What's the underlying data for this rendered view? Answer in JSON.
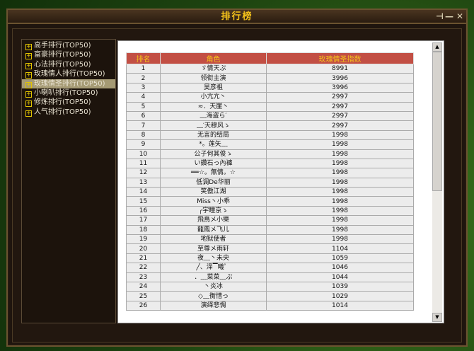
{
  "window": {
    "title": "排行榜",
    "pin_icon": "pin-icon",
    "minimize_icon": "minimize-icon",
    "close_icon": "close-icon"
  },
  "tree": {
    "selected": 4,
    "items": [
      {
        "label": "高手排行(TOP50)"
      },
      {
        "label": "富豪排行(TOP50)"
      },
      {
        "label": "心法排行(TOP50)"
      },
      {
        "label": "玫瑰情人排行(TOP50)"
      },
      {
        "label": "玫瑰情圣排行(TOP50)"
      },
      {
        "label": "小喇叭排行(TOP50)"
      },
      {
        "label": "修炼排行(TOP50)"
      },
      {
        "label": "人气排行(TOP50)"
      }
    ]
  },
  "table": {
    "headers": [
      "排名",
      "角色",
      "玫瑰情圣指数"
    ],
    "rows": [
      [
        "1",
        "ゞ情天ぷ",
        "8991"
      ],
      [
        "2",
        "领衔主演",
        "3996"
      ],
      [
        "3",
        "吴彦祖",
        "3996"
      ],
      [
        "4",
        "小亢亢丶",
        "2997"
      ],
      [
        "5",
        "≈．天崖丶",
        "2997"
      ],
      [
        "6",
        "﹏海盗ら′",
        "2997"
      ],
      [
        "7",
        "﹏′天穆风ゝ",
        "2997"
      ],
      [
        "8",
        "无言的结局",
        "1998"
      ],
      [
        "9",
        "*。莲矢﹏",
        "1998"
      ],
      [
        "10",
        "公子何其俊ゝ",
        "1998"
      ],
      [
        "11",
        "い鑽石っ內褲",
        "1998"
      ],
      [
        "12",
        "══☆。無情。☆",
        "1998"
      ],
      [
        "13",
        "低调De华丽",
        "1998"
      ],
      [
        "14",
        "笑傲江湖",
        "1998"
      ],
      [
        "15",
        "Miss丶小乖",
        "1998"
      ],
      [
        "16",
        "╭宇瞳京ゝ",
        "1998"
      ],
      [
        "17",
        "飛鳥メ小樂",
        "1998"
      ],
      [
        "18",
        "龍鳳メ飞儿",
        "1998"
      ],
      [
        "19",
        "地狱使者",
        "1998"
      ],
      [
        "20",
        "至尊メ雨轩",
        "1104"
      ],
      [
        "21",
        "夜﹏丶未央",
        "1059"
      ],
      [
        "22",
        "╱、泽▔曦゜",
        "1046"
      ],
      [
        "23",
        "．﹏菜菜﹏ぷ",
        "1044"
      ],
      [
        "24",
        "丶炎冰",
        "1039"
      ],
      [
        "25",
        "◇﹏衡惜っ",
        "1029"
      ],
      [
        "26",
        "演绎悲惆",
        "1014"
      ]
    ]
  },
  "scrollbar": {
    "up_icon": "arrow-up-icon",
    "down_icon": "arrow-down-icon",
    "position_percent": 0
  }
}
